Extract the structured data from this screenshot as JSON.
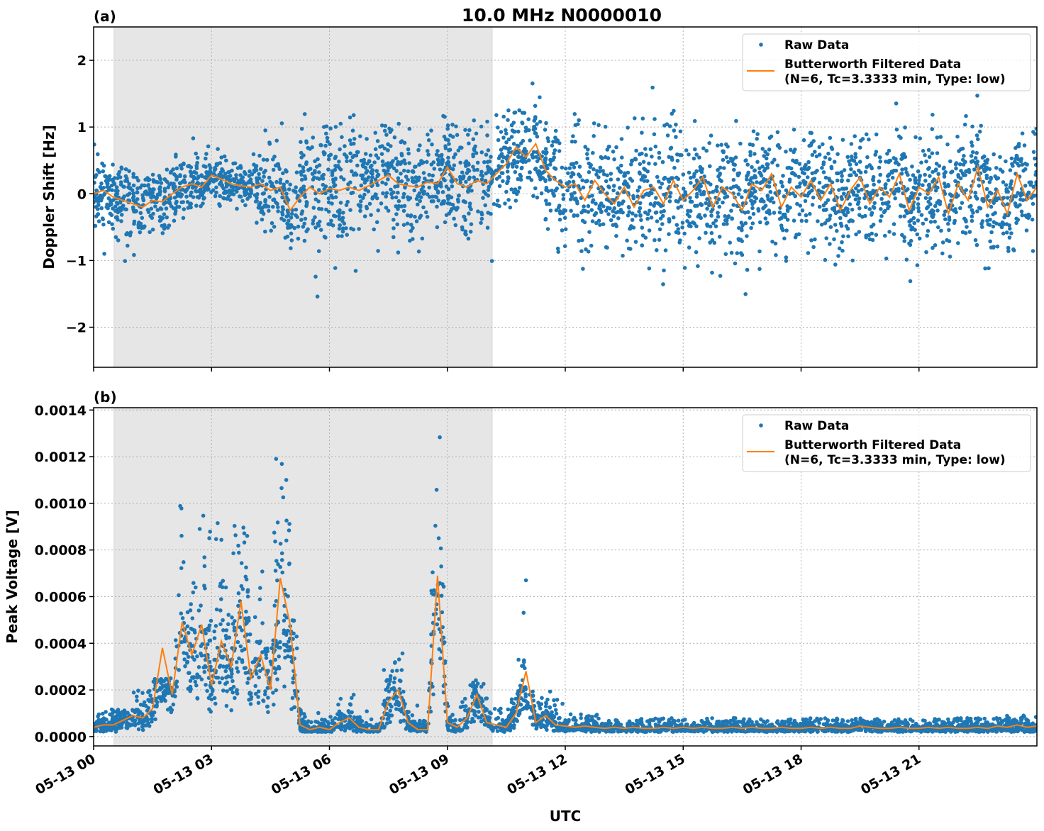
{
  "title": "10.0 MHz N0000010",
  "colors": {
    "raw": "#1f77b4",
    "filtered": "#ff7f0e",
    "shade": "#e6e6e6"
  },
  "xlabel": "UTC",
  "chart_data": [
    {
      "panel_label": "(a)",
      "type": "scatter",
      "ylabel": "Doppler Shift [Hz]",
      "x_unit": "hours UTC on 05-13",
      "xlim": [
        0,
        24
      ],
      "ylim": [
        -2.6,
        2.5
      ],
      "x_ticks": [
        0,
        3,
        6,
        9,
        12,
        15,
        18,
        21
      ],
      "x_tick_labels": [
        "05-13 00",
        "05-13 03",
        "05-13 06",
        "05-13 09",
        "05-13 12",
        "05-13 15",
        "05-13 18",
        "05-13 21"
      ],
      "y_ticks": [
        -2,
        -1,
        0,
        1,
        2
      ],
      "y_tick_labels": [
        "−2",
        "−1",
        "0",
        "1",
        "2"
      ],
      "grid": true,
      "shaded_interval_hours": [
        0.52,
        10.14
      ],
      "legend_position": "top-right",
      "legend": [
        "Raw Data",
        "Butterworth Filtered Data",
        "(N=6, Tc=3.3333 min, Type: low)"
      ],
      "filtered_step_hours": 0.25,
      "filtered": [
        0.0,
        0.05,
        -0.05,
        -0.1,
        -0.15,
        -0.2,
        -0.1,
        -0.12,
        0.0,
        0.1,
        0.15,
        0.1,
        0.28,
        0.22,
        0.15,
        0.12,
        0.1,
        0.15,
        0.05,
        0.1,
        -0.25,
        -0.05,
        0.1,
        0.0,
        0.08,
        0.05,
        0.1,
        0.05,
        0.12,
        0.2,
        0.28,
        0.15,
        0.12,
        0.1,
        0.18,
        0.15,
        0.4,
        0.15,
        0.1,
        0.2,
        0.15,
        0.3,
        0.45,
        0.7,
        0.55,
        0.75,
        0.35,
        0.2,
        0.1,
        0.15,
        -0.1,
        0.2,
        0.0,
        -0.15,
        0.1,
        -0.2,
        0.05,
        0.1,
        -0.15,
        0.2,
        -0.1,
        0.05,
        0.25,
        -0.2,
        0.1,
        0.0,
        -0.25,
        0.15,
        0.05,
        0.3,
        -0.2,
        0.1,
        -0.05,
        0.2,
        -0.1,
        0.15,
        -0.25,
        0.05,
        0.25,
        -0.15,
        0.1,
        -0.05,
        0.3,
        -0.25,
        0.1,
        0.0,
        0.25,
        -0.3,
        0.15,
        -0.1,
        0.4,
        -0.2,
        0.05,
        -0.3,
        0.3,
        -0.1,
        0.1
      ],
      "raw_spread_step_hours": 1,
      "raw_spread": [
        0.45,
        0.45,
        0.4,
        0.35,
        0.3,
        0.7,
        0.8,
        0.75,
        0.7,
        0.6,
        0.7,
        0.6,
        0.7,
        0.7,
        0.7,
        0.7,
        0.7,
        0.7,
        0.7,
        0.7,
        0.7,
        0.7,
        0.7,
        0.7,
        0.7
      ]
    },
    {
      "panel_label": "(b)",
      "type": "scatter",
      "ylabel": "Peak Voltage [V]",
      "x_unit": "hours UTC on 05-13",
      "xlim": [
        0,
        24
      ],
      "ylim": [
        -4e-05,
        0.00141
      ],
      "x_ticks": [
        0,
        3,
        6,
        9,
        12,
        15,
        18,
        21
      ],
      "x_tick_labels": [
        "05-13 00",
        "05-13 03",
        "05-13 06",
        "05-13 09",
        "05-13 12",
        "05-13 15",
        "05-13 18",
        "05-13 21"
      ],
      "y_ticks": [
        0,
        0.0002,
        0.0004,
        0.0006,
        0.0008,
        0.001,
        0.0012,
        0.0014
      ],
      "y_tick_labels": [
        "0.0000",
        "0.0002",
        "0.0004",
        "0.0006",
        "0.0008",
        "0.0010",
        "0.0012",
        "0.0014"
      ],
      "grid": true,
      "shaded_interval_hours": [
        0.52,
        10.14
      ],
      "legend_position": "top-right",
      "legend": [
        "Raw Data",
        "Butterworth Filtered Data",
        "(N=6, Tc=3.3333 min, Type: low)"
      ],
      "filtered_step_hours": 0.25,
      "filtered": [
        4e-05,
        5e-05,
        5e-05,
        7e-05,
        9e-05,
        8e-05,
        0.00012,
        0.00038,
        0.00018,
        0.00049,
        0.00035,
        0.00048,
        0.00022,
        0.00041,
        0.0003,
        0.00058,
        0.00025,
        0.00035,
        0.0002,
        0.00068,
        0.00048,
        5e-05,
        3e-05,
        4e-05,
        3e-05,
        6e-05,
        8e-05,
        4e-05,
        3e-05,
        3e-05,
        0.00015,
        0.0002,
        6e-05,
        3e-05,
        3e-05,
        0.00069,
        6e-05,
        4e-05,
        8e-05,
        0.00018,
        6e-05,
        5e-05,
        4e-05,
        0.0001,
        0.00028,
        6e-05,
        9e-05,
        5e-05,
        4.5e-05,
        4e-05,
        4.5e-05,
        4e-05,
        3.5e-05,
        4e-05,
        3.5e-05,
        4e-05,
        3.5e-05,
        3.5e-05,
        4e-05,
        3.5e-05,
        4e-05,
        3.5e-05,
        4e-05,
        3.5e-05,
        3.5e-05,
        4e-05,
        3.5e-05,
        4e-05,
        3.5e-05,
        3.5e-05,
        4e-05,
        3.5e-05,
        3.5e-05,
        4e-05,
        3.5e-05,
        4e-05,
        3.5e-05,
        3.5e-05,
        4.5e-05,
        4e-05,
        3.5e-05,
        3.5e-05,
        4e-05,
        3.5e-05,
        3.5e-05,
        4e-05,
        3.5e-05,
        4e-05,
        3.5e-05,
        3.5e-05,
        4e-05,
        3.5e-05,
        4.5e-05,
        4e-05,
        5e-05,
        4e-05,
        4.5e-05
      ],
      "raw_max_step_hours": 1,
      "raw_max": [
        0.00012,
        0.00025,
        0.00104,
        0.00094,
        0.00132,
        0.0006,
        0.0002,
        0.00036,
        0.00133,
        0.00027,
        0.00073,
        0.0002,
        0.0001,
        8e-05,
        8e-05,
        8e-05,
        8e-05,
        8e-05,
        8e-05,
        8e-05,
        8e-05,
        8e-05,
        8e-05,
        9e-05,
        9e-05
      ]
    }
  ]
}
